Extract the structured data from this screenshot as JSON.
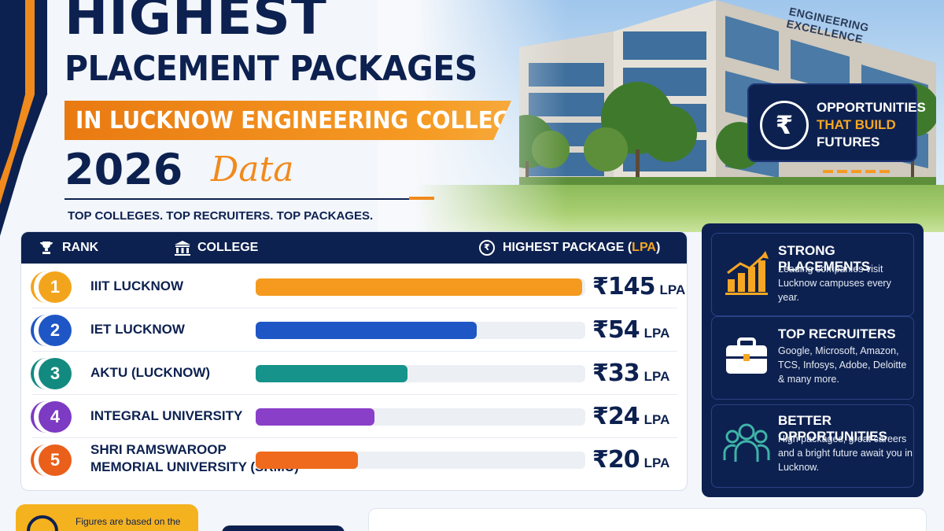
{
  "header": {
    "line1": "HIGHEST",
    "line2": "PLACEMENT PACKAGES",
    "banner": "IN LUCKNOW ENGINEERING COLLEGES",
    "year": "2026",
    "script_word": "Data",
    "tagline": "TOP COLLEGES. TOP RECRUITERS. TOP PACKAGES."
  },
  "building_sign": "ENGINEERING EXCELLENCE",
  "opportunity_card": {
    "icon": "rupee-icon",
    "symbol": "₹",
    "line1": "OPPORTUNITIES",
    "line2": "THAT BUILD",
    "line3": "FUTURES"
  },
  "table": {
    "headers": {
      "rank": "RANK",
      "college": "COLLEGE",
      "package": "HIGHEST PACKAGE",
      "package_paren_open": "(",
      "package_unit": "LPA",
      "package_paren_close": ")"
    },
    "rupee_symbol": "₹",
    "rows": [
      {
        "rank": "1",
        "college": "IIIT LUCKNOW",
        "package": "145",
        "unit": "LPA",
        "fill_fraction": 0.99,
        "color": "#f59a1e",
        "badge_color": "#f2a51c"
      },
      {
        "rank": "2",
        "college": "IET LUCKNOW",
        "package": "54",
        "unit": "LPA",
        "fill_fraction": 0.67,
        "color": "#1f56c6",
        "badge_color": "#1f56c6"
      },
      {
        "rank": "3",
        "college": "AKTU (LUCKNOW)",
        "package": "33",
        "unit": "LPA",
        "fill_fraction": 0.46,
        "color": "#16938a",
        "badge_color": "#138a80"
      },
      {
        "rank": "4",
        "college": "INTEGRAL UNIVERSITY",
        "package": "24",
        "unit": "LPA",
        "fill_fraction": 0.36,
        "color": "#8a3fc9",
        "badge_color": "#7d3ac2"
      },
      {
        "rank": "5",
        "college_line1": "SHRI RAMSWAROOP",
        "college_line2": "MEMORIAL UNIVERSITY (SRMU)",
        "package": "20",
        "unit": "LPA",
        "fill_fraction": 0.31,
        "color": "#ef6a1c",
        "badge_color": "#ea5f1a"
      }
    ]
  },
  "info_panel": [
    {
      "icon": "growth-chart-icon",
      "title": "STRONG PLACEMENTS",
      "body": "Leading companies visit Lucknow campuses every year."
    },
    {
      "icon": "briefcase-icon",
      "title": "TOP RECRUITERS",
      "body": "Google, Microsoft, Amazon, TCS, Infosys, Adobe, Deloitte & many more."
    },
    {
      "icon": "people-group-icon",
      "title": "BETTER OPPORTUNITIES",
      "body": "High packages, great careers and a bright future await you in Lucknow."
    }
  ],
  "footer": {
    "note": "Figures are based on the",
    "note_icon": "target-icon"
  },
  "colors": {
    "navy": "#0d2150",
    "orange": "#f08a1c",
    "gold": "#f5a623"
  }
}
